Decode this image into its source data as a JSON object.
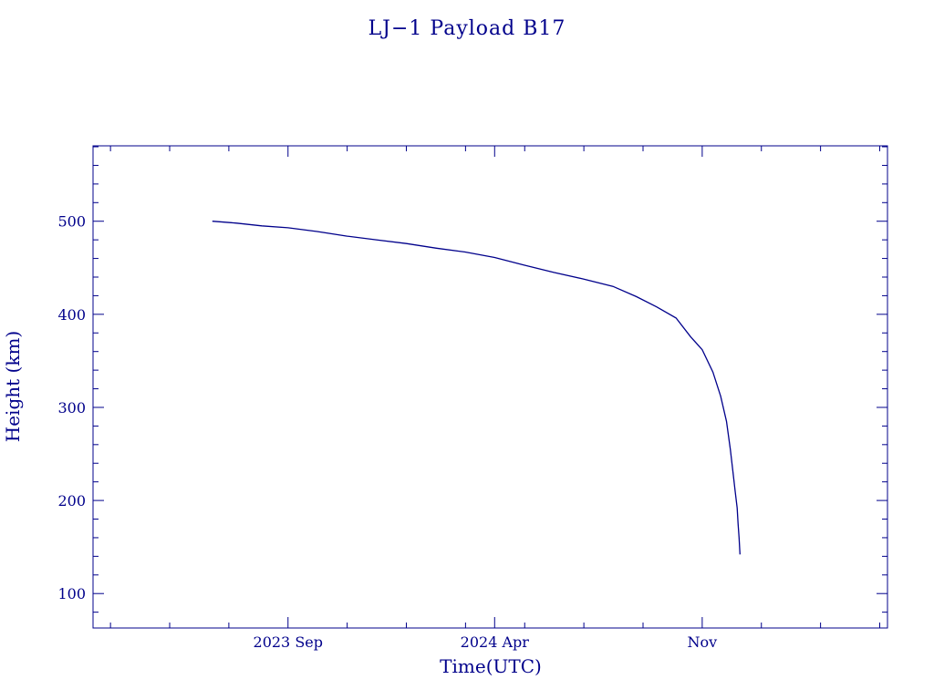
{
  "colors": {
    "ink": "#00008b",
    "background": "#ffffff"
  },
  "chart_data": {
    "type": "line",
    "title": "LJ−1 Payload B17",
    "xlabel": "Time(UTC)",
    "ylabel": "Height (km)",
    "x_is_date": true,
    "xlim": [
      "2023-02-12",
      "2025-05-11"
    ],
    "ylim": [
      63,
      581
    ],
    "x_ticks": [
      {
        "value": "2023-09-01",
        "label": "2023 Sep"
      },
      {
        "value": "2024-04-01",
        "label": "2024 Apr"
      },
      {
        "value": "2024-11-01",
        "label": "Nov"
      }
    ],
    "y_ticks": [
      100,
      200,
      300,
      400,
      500
    ],
    "grid": false,
    "series": [
      {
        "x": [
          "2023-06-15",
          "2023-07-10",
          "2023-08-05",
          "2023-09-01",
          "2023-10-01",
          "2023-11-01",
          "2023-12-01",
          "2024-01-01",
          "2024-02-01",
          "2024-03-01",
          "2024-04-01",
          "2024-05-01",
          "2024-06-01",
          "2024-07-01",
          "2024-08-01",
          "2024-08-25",
          "2024-09-15",
          "2024-10-05",
          "2024-10-20",
          "2024-11-01",
          "2024-11-12",
          "2024-11-20",
          "2024-11-26",
          "2024-11-30",
          "2024-12-03",
          "2024-12-05",
          "2024-12-07",
          "2024-12-08",
          "2024-12-09",
          "2024-12-10"
        ],
        "y": [
          500,
          498,
          495,
          493,
          489,
          484,
          480,
          476,
          471,
          467,
          461,
          453,
          445,
          438,
          430,
          419,
          408,
          396,
          376,
          362,
          338,
          312,
          285,
          255,
          228,
          210,
          192,
          175,
          160,
          142
        ]
      }
    ]
  }
}
